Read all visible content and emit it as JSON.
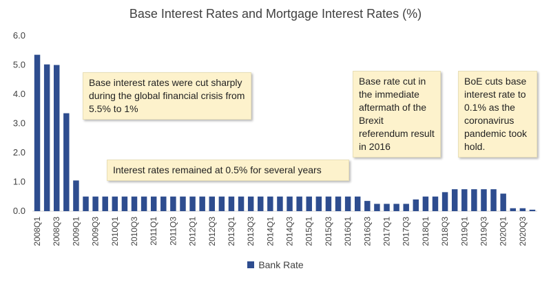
{
  "chart_data": {
    "type": "bar",
    "title": "Base Interest Rates and Mortgage Interest Rates (%)",
    "ylim": [
      0,
      6
    ],
    "yticks": [
      "0.0",
      "1.0",
      "2.0",
      "3.0",
      "4.0",
      "5.0",
      "6.0"
    ],
    "grid": false,
    "legend_position": "bottom",
    "bar_color": "#2e4d8f",
    "categories": [
      "2008Q1",
      "2008Q2",
      "2008Q3",
      "2008Q4",
      "2009Q1",
      "2009Q2",
      "2009Q3",
      "2009Q4",
      "2010Q1",
      "2010Q2",
      "2010Q3",
      "2010Q4",
      "2011Q1",
      "2011Q2",
      "2011Q3",
      "2011Q4",
      "2012Q1",
      "2012Q2",
      "2012Q3",
      "2012Q4",
      "2013Q1",
      "2013Q2",
      "2013Q3",
      "2013Q4",
      "2014Q1",
      "2014Q2",
      "2014Q3",
      "2014Q4",
      "2015Q1",
      "2015Q2",
      "2015Q3",
      "2015Q4",
      "2016Q1",
      "2016Q2",
      "2016Q3",
      "2016Q4",
      "2017Q1",
      "2017Q2",
      "2017Q3",
      "2017Q4",
      "2018Q1",
      "2018Q2",
      "2018Q3",
      "2018Q4",
      "2019Q1",
      "2019Q2",
      "2019Q3",
      "2019Q4",
      "2020Q1",
      "2020Q2",
      "2020Q3",
      "2020Q4"
    ],
    "tick_labels": [
      "2008Q1",
      "2008Q3",
      "2009Q1",
      "2009Q3",
      "2010Q1",
      "2010Q3",
      "2011Q1",
      "2011Q3",
      "2012Q1",
      "2012Q3",
      "2013Q1",
      "2013Q3",
      "2014Q1",
      "2014Q3",
      "2015Q1",
      "2015Q3",
      "2016Q1",
      "2016Q3",
      "2017Q1",
      "2017Q3",
      "2018Q1",
      "2018Q3",
      "2019Q1",
      "2019Q3",
      "2020Q1",
      "2020Q3"
    ],
    "series": [
      {
        "name": "Bank Rate",
        "values": [
          5.35,
          5.02,
          5.0,
          3.35,
          1.05,
          0.5,
          0.5,
          0.5,
          0.5,
          0.5,
          0.5,
          0.5,
          0.5,
          0.5,
          0.5,
          0.5,
          0.5,
          0.5,
          0.5,
          0.5,
          0.5,
          0.5,
          0.5,
          0.5,
          0.5,
          0.5,
          0.5,
          0.5,
          0.5,
          0.5,
          0.5,
          0.5,
          0.5,
          0.5,
          0.35,
          0.25,
          0.25,
          0.25,
          0.25,
          0.4,
          0.5,
          0.5,
          0.65,
          0.75,
          0.75,
          0.75,
          0.75,
          0.75,
          0.6,
          0.1,
          0.1,
          0.05
        ]
      }
    ],
    "annotations": [
      {
        "id": "gfc",
        "text": "Base interest rates were cut sharply during the global financial crisis from 5.5% to 1%"
      },
      {
        "id": "low",
        "text": "Interest rates remained at 0.5% for several years"
      },
      {
        "id": "brexit",
        "text": "Base rate cut in the immediate aftermath of the Brexit referendum result in 2016"
      },
      {
        "id": "covid",
        "text": "BoE cuts base interest rate to 0.1% as the coronavirus pandemic took hold."
      }
    ]
  }
}
